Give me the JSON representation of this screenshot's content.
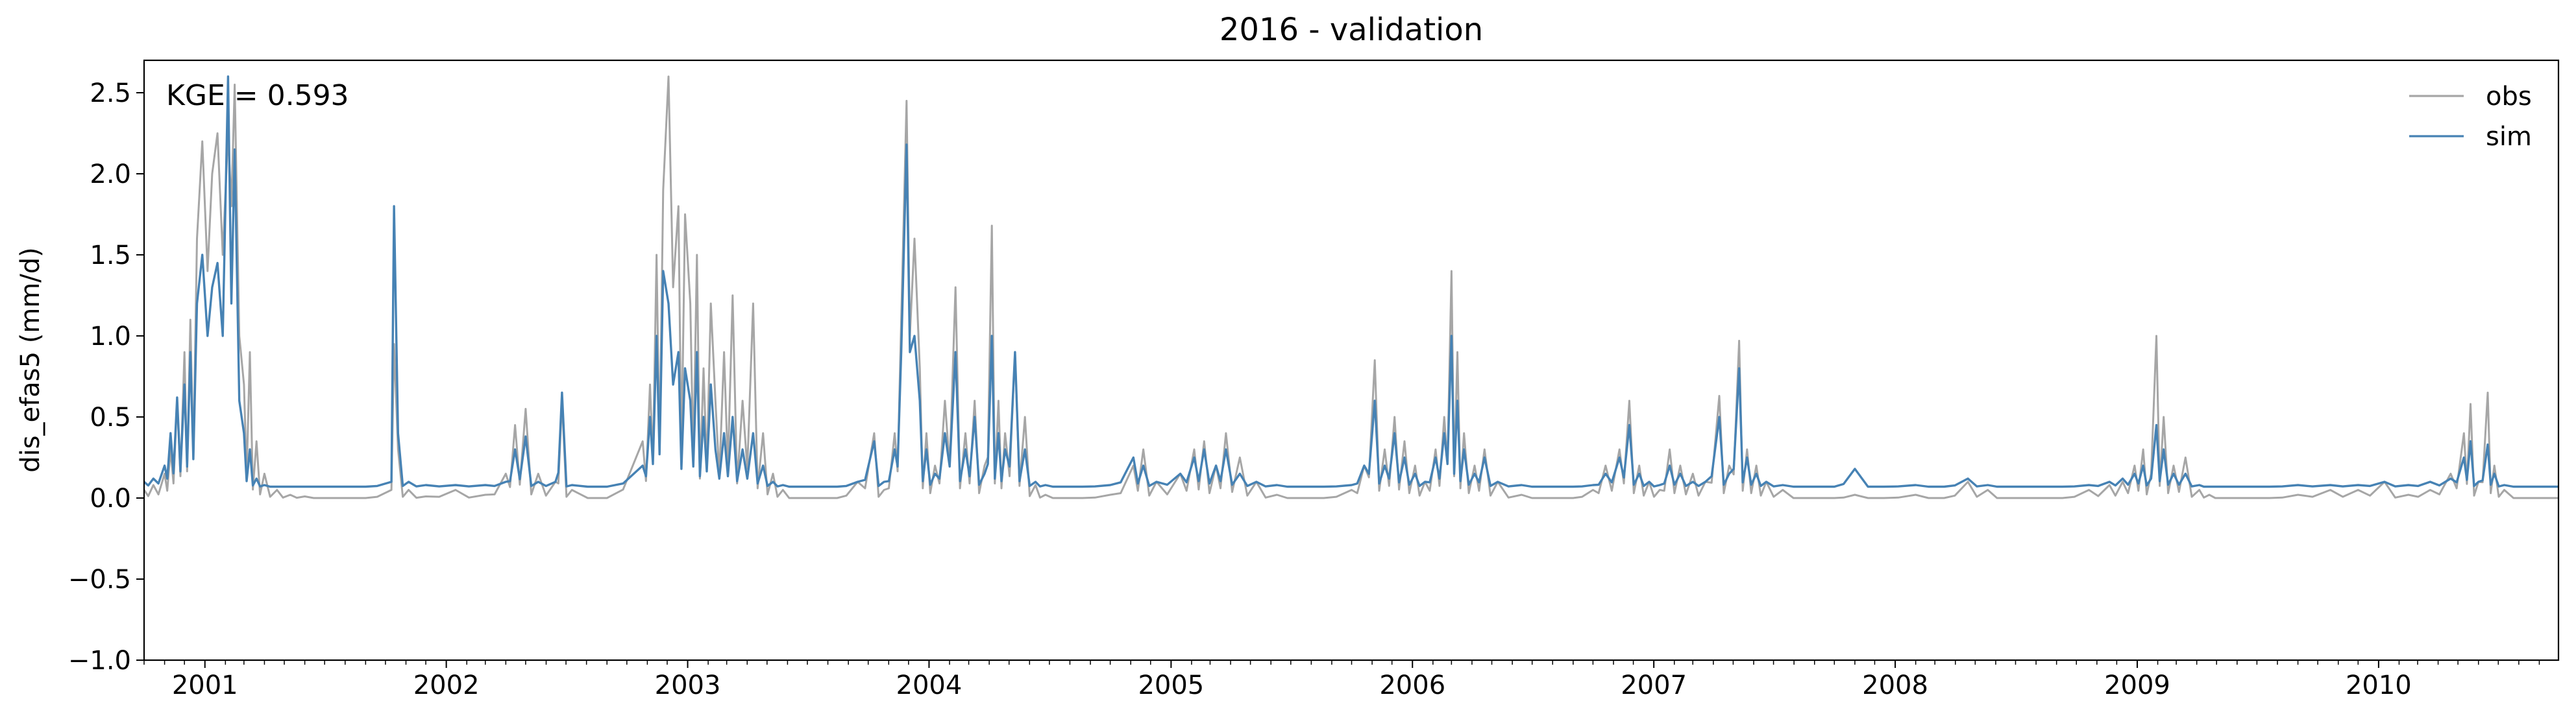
{
  "chart_data": {
    "type": "line",
    "title": "2016 - validation",
    "xlabel": "",
    "ylabel": "dis_efas5 (mm/d)",
    "annotation": "KGE = 0.593",
    "ylim": [
      -1.0,
      2.7
    ],
    "xlim": [
      "2000-10-01",
      "2010-09-30"
    ],
    "yticks": [
      "−1.0",
      "−0.5",
      "0.0",
      "0.5",
      "1.0",
      "1.5",
      "2.0",
      "2.5"
    ],
    "ytick_values": [
      -1.0,
      -0.5,
      0.0,
      0.5,
      1.0,
      1.5,
      2.0,
      2.5
    ],
    "xticks": [
      "2001",
      "2002",
      "2003",
      "2004",
      "2005",
      "2006",
      "2007",
      "2008",
      "2009",
      "2010"
    ],
    "legend_position": "top-right",
    "grid": false,
    "series": [
      {
        "name": "obs",
        "color": "#a6a6a6",
        "baseline": 0.0,
        "x": [
          "2000-10-01",
          "2000-10-15",
          "2000-11-01",
          "2000-11-10",
          "2000-11-20",
          "2000-12-01",
          "2000-12-10",
          "2000-12-20",
          "2000-12-28",
          "2001-01-05",
          "2001-01-12",
          "2001-01-20",
          "2001-01-28",
          "2001-02-05",
          "2001-02-10",
          "2001-02-15",
          "2001-02-22",
          "2001-03-01",
          "2001-03-10",
          "2001-03-20",
          "2001-04-01",
          "2001-04-20",
          "2001-05-10",
          "2001-06-01",
          "2001-07-01",
          "2001-09-01",
          "2001-10-10",
          "2001-10-14",
          "2001-10-20",
          "2001-11-05",
          "2001-12-01",
          "2002-01-15",
          "2002-03-01",
          "2002-04-01",
          "2002-04-15",
          "2002-05-01",
          "2002-05-20",
          "2002-06-15",
          "2002-06-25",
          "2002-07-10",
          "2002-09-01",
          "2002-10-25",
          "2002-11-05",
          "2002-11-15",
          "2002-11-25",
          "2002-12-03",
          "2002-12-10",
          "2002-12-18",
          "2002-12-28",
          "2003-01-05",
          "2003-01-15",
          "2003-01-25",
          "2003-02-05",
          "2003-02-12",
          "2003-02-25",
          "2003-03-10",
          "2003-03-25",
          "2003-04-10",
          "2003-04-25",
          "2003-05-10",
          "2003-05-25",
          "2003-06-15",
          "2003-07-15",
          "2003-08-15",
          "2003-09-15",
          "2003-10-10",
          "2003-10-25",
          "2003-11-10",
          "2003-11-20",
          "2003-11-28",
          "2003-12-03",
          "2003-12-10",
          "2003-12-18",
          "2003-12-28",
          "2004-01-10",
          "2004-01-25",
          "2004-02-10",
          "2004-02-25",
          "2004-03-10",
          "2004-03-25",
          "2004-04-05",
          "2004-04-15",
          "2004-04-25",
          "2004-05-10",
          "2004-05-25",
          "2004-06-10",
          "2004-06-25",
          "2004-07-20",
          "2004-08-20",
          "2004-10-01",
          "2004-11-05",
          "2004-11-20",
          "2004-12-10",
          "2005-01-15",
          "2005-02-05",
          "2005-02-20",
          "2005-03-10",
          "2005-03-25",
          "2005-04-15",
          "2005-05-10",
          "2005-06-10",
          "2005-07-15",
          "2005-08-20",
          "2005-10-01",
          "2005-10-20",
          "2005-11-05",
          "2005-11-20",
          "2005-12-05",
          "2005-12-20",
          "2006-01-05",
          "2006-01-20",
          "2006-02-05",
          "2006-02-18",
          "2006-03-01",
          "2006-03-10",
          "2006-03-20",
          "2006-04-05",
          "2006-04-20",
          "2006-05-10",
          "2006-06-15",
          "2006-07-20",
          "2006-09-01",
          "2006-10-01",
          "2006-10-20",
          "2006-11-10",
          "2006-11-25",
          "2006-12-10",
          "2006-12-25",
          "2007-01-10",
          "2007-01-25",
          "2007-02-10",
          "2007-03-01",
          "2007-03-20",
          "2007-04-10",
          "2007-04-25",
          "2007-05-10",
          "2007-05-22",
          "2007-06-05",
          "2007-06-20",
          "2007-07-15",
          "2007-08-20",
          "2007-10-01",
          "2007-11-01",
          "2007-12-15",
          "2008-02-01",
          "2008-03-15",
          "2008-04-20",
          "2008-05-20",
          "2008-06-20",
          "2008-08-01",
          "2008-09-10",
          "2008-10-20",
          "2008-11-20",
          "2008-12-10",
          "2008-12-28",
          "2009-01-10",
          "2009-01-22",
          "2009-01-30",
          "2009-02-10",
          "2009-02-25",
          "2009-03-15",
          "2009-04-05",
          "2009-04-20",
          "2009-05-10",
          "2009-06-10",
          "2009-07-20",
          "2009-09-01",
          "2009-10-20",
          "2009-12-01",
          "2010-01-10",
          "2010-02-15",
          "2010-03-20",
          "2010-04-20",
          "2010-05-10",
          "2010-05-20",
          "2010-06-01",
          "2010-06-15",
          "2010-06-25",
          "2010-07-10",
          "2010-08-10",
          "2010-09-10",
          "2010-09-30"
        ],
        "values": [
          0.05,
          0.08,
          0.15,
          0.3,
          0.6,
          0.9,
          1.1,
          1.6,
          2.2,
          1.4,
          2.0,
          2.25,
          1.5,
          2.25,
          1.8,
          2.55,
          1.0,
          0.7,
          0.9,
          0.35,
          0.15,
          0.05,
          0.02,
          0.01,
          0.0,
          0.0,
          0.05,
          0.95,
          0.3,
          0.05,
          0.01,
          0.05,
          0.02,
          0.15,
          0.45,
          0.55,
          0.15,
          0.1,
          0.6,
          0.05,
          0.0,
          0.35,
          0.7,
          1.5,
          1.9,
          2.6,
          1.3,
          1.8,
          1.75,
          1.2,
          1.5,
          0.8,
          1.2,
          0.6,
          0.9,
          1.25,
          0.6,
          1.2,
          0.4,
          0.15,
          0.05,
          0.0,
          0.0,
          0.0,
          0.1,
          0.4,
          0.05,
          0.4,
          1.1,
          2.45,
          1.0,
          1.6,
          0.8,
          0.4,
          0.2,
          0.6,
          1.3,
          0.4,
          0.6,
          0.2,
          1.68,
          0.6,
          0.4,
          0.9,
          0.5,
          0.08,
          0.02,
          0.0,
          0.0,
          0.02,
          0.2,
          0.3,
          0.1,
          0.15,
          0.3,
          0.35,
          0.2,
          0.4,
          0.25,
          0.1,
          0.02,
          0.0,
          0.0,
          0.05,
          0.2,
          0.85,
          0.3,
          0.5,
          0.35,
          0.2,
          0.1,
          0.3,
          0.5,
          1.4,
          0.9,
          0.4,
          0.2,
          0.3,
          0.1,
          0.02,
          0.0,
          0.0,
          0.05,
          0.2,
          0.3,
          0.6,
          0.2,
          0.1,
          0.05,
          0.3,
          0.2,
          0.15,
          0.1,
          0.63,
          0.2,
          0.97,
          0.3,
          0.2,
          0.1,
          0.05,
          0.0,
          0.0,
          0.02,
          0.0,
          0.02,
          0.0,
          0.1,
          0.05,
          0.0,
          0.0,
          0.0,
          0.05,
          0.08,
          0.1,
          0.2,
          0.3,
          0.15,
          1.0,
          0.5,
          0.2,
          0.25,
          0.05,
          0.02,
          0.0,
          0.0,
          0.0,
          0.02,
          0.05,
          0.05,
          0.1,
          0.02,
          0.05,
          0.15,
          0.4,
          0.58,
          0.1,
          0.65,
          0.2,
          0.05,
          0.0,
          0.0,
          0.0
        ]
      },
      {
        "name": "sim",
        "color": "#4682b4",
        "baseline": 0.07,
        "x": [
          "2000-10-01",
          "2000-10-15",
          "2000-11-01",
          "2000-11-10",
          "2000-11-20",
          "2000-12-01",
          "2000-12-10",
          "2000-12-20",
          "2000-12-28",
          "2001-01-05",
          "2001-01-12",
          "2001-01-20",
          "2001-01-28",
          "2001-02-05",
          "2001-02-10",
          "2001-02-15",
          "2001-02-22",
          "2001-03-01",
          "2001-03-10",
          "2001-03-20",
          "2001-04-01",
          "2001-04-20",
          "2001-05-10",
          "2001-06-01",
          "2001-07-01",
          "2001-09-01",
          "2001-10-10",
          "2001-10-14",
          "2001-10-20",
          "2001-11-05",
          "2001-12-01",
          "2002-01-15",
          "2002-03-01",
          "2002-04-01",
          "2002-04-15",
          "2002-05-01",
          "2002-05-20",
          "2002-06-15",
          "2002-06-25",
          "2002-07-10",
          "2002-09-01",
          "2002-10-25",
          "2002-11-05",
          "2002-11-15",
          "2002-11-25",
          "2002-12-03",
          "2002-12-10",
          "2002-12-18",
          "2002-12-28",
          "2003-01-05",
          "2003-01-15",
          "2003-01-25",
          "2003-02-05",
          "2003-02-12",
          "2003-02-25",
          "2003-03-10",
          "2003-03-25",
          "2003-04-10",
          "2003-04-25",
          "2003-05-10",
          "2003-05-25",
          "2003-06-15",
          "2003-07-15",
          "2003-08-15",
          "2003-09-15",
          "2003-10-10",
          "2003-10-25",
          "2003-11-10",
          "2003-11-20",
          "2003-11-28",
          "2003-12-03",
          "2003-12-10",
          "2003-12-18",
          "2003-12-28",
          "2004-01-10",
          "2004-01-25",
          "2004-02-10",
          "2004-02-25",
          "2004-03-10",
          "2004-03-25",
          "2004-04-05",
          "2004-04-15",
          "2004-04-25",
          "2004-05-10",
          "2004-05-25",
          "2004-06-10",
          "2004-06-25",
          "2004-07-20",
          "2004-08-20",
          "2004-10-01",
          "2004-11-05",
          "2004-11-20",
          "2004-12-10",
          "2005-01-15",
          "2005-02-05",
          "2005-02-20",
          "2005-03-10",
          "2005-03-25",
          "2005-04-15",
          "2005-05-10",
          "2005-06-10",
          "2005-07-15",
          "2005-08-20",
          "2005-10-01",
          "2005-10-20",
          "2005-11-05",
          "2005-11-20",
          "2005-12-05",
          "2005-12-20",
          "2006-01-05",
          "2006-01-20",
          "2006-02-05",
          "2006-02-18",
          "2006-03-01",
          "2006-03-10",
          "2006-03-20",
          "2006-04-05",
          "2006-04-20",
          "2006-05-10",
          "2006-06-15",
          "2006-07-20",
          "2006-09-01",
          "2006-10-01",
          "2006-10-20",
          "2006-11-10",
          "2006-11-25",
          "2006-12-10",
          "2006-12-25",
          "2007-01-10",
          "2007-01-25",
          "2007-02-10",
          "2007-03-01",
          "2007-03-20",
          "2007-04-10",
          "2007-04-25",
          "2007-05-10",
          "2007-05-22",
          "2007-06-05",
          "2007-06-20",
          "2007-07-15",
          "2007-08-20",
          "2007-10-01",
          "2007-11-01",
          "2007-12-15",
          "2008-02-01",
          "2008-03-15",
          "2008-04-20",
          "2008-05-20",
          "2008-06-20",
          "2008-08-01",
          "2008-09-10",
          "2008-10-20",
          "2008-11-20",
          "2008-12-10",
          "2008-12-28",
          "2009-01-10",
          "2009-01-22",
          "2009-01-30",
          "2009-02-10",
          "2009-02-25",
          "2009-03-15",
          "2009-04-05",
          "2009-04-20",
          "2009-05-10",
          "2009-06-10",
          "2009-07-20",
          "2009-09-01",
          "2009-10-20",
          "2009-12-01",
          "2010-01-10",
          "2010-02-15",
          "2010-03-20",
          "2010-04-20",
          "2010-05-10",
          "2010-05-20",
          "2010-06-01",
          "2010-06-15",
          "2010-06-25",
          "2010-07-10",
          "2010-08-10",
          "2010-09-10",
          "2010-09-30"
        ],
        "values": [
          0.1,
          0.12,
          0.2,
          0.4,
          0.62,
          0.7,
          0.9,
          1.2,
          1.5,
          1.0,
          1.3,
          1.45,
          1.0,
          2.6,
          1.2,
          2.15,
          0.6,
          0.4,
          0.3,
          0.12,
          0.08,
          0.07,
          0.07,
          0.07,
          0.07,
          0.07,
          0.1,
          1.8,
          0.4,
          0.1,
          0.08,
          0.08,
          0.08,
          0.1,
          0.3,
          0.38,
          0.1,
          0.1,
          0.65,
          0.08,
          0.07,
          0.2,
          0.5,
          1.0,
          1.4,
          1.2,
          0.7,
          0.9,
          0.8,
          0.6,
          0.9,
          0.5,
          0.7,
          0.3,
          0.4,
          0.5,
          0.3,
          0.4,
          0.2,
          0.1,
          0.08,
          0.07,
          0.07,
          0.07,
          0.1,
          0.35,
          0.1,
          0.3,
          0.9,
          2.18,
          0.9,
          1.0,
          0.6,
          0.3,
          0.15,
          0.4,
          0.9,
          0.3,
          0.5,
          0.15,
          1.0,
          0.4,
          0.3,
          0.9,
          0.3,
          0.1,
          0.08,
          0.07,
          0.07,
          0.08,
          0.25,
          0.2,
          0.1,
          0.15,
          0.25,
          0.3,
          0.2,
          0.3,
          0.15,
          0.1,
          0.08,
          0.07,
          0.07,
          0.08,
          0.2,
          0.6,
          0.2,
          0.4,
          0.25,
          0.15,
          0.1,
          0.25,
          0.4,
          1.0,
          0.6,
          0.3,
          0.15,
          0.25,
          0.1,
          0.08,
          0.07,
          0.07,
          0.08,
          0.15,
          0.25,
          0.45,
          0.15,
          0.1,
          0.08,
          0.2,
          0.15,
          0.1,
          0.1,
          0.5,
          0.15,
          0.8,
          0.25,
          0.15,
          0.1,
          0.08,
          0.07,
          0.07,
          0.18,
          0.07,
          0.08,
          0.07,
          0.12,
          0.08,
          0.07,
          0.07,
          0.07,
          0.08,
          0.1,
          0.12,
          0.15,
          0.2,
          0.12,
          0.45,
          0.3,
          0.15,
          0.15,
          0.08,
          0.07,
          0.07,
          0.07,
          0.07,
          0.08,
          0.08,
          0.08,
          0.1,
          0.08,
          0.1,
          0.12,
          0.25,
          0.35,
          0.1,
          0.33,
          0.15,
          0.08,
          0.07,
          0.07,
          0.07
        ]
      }
    ]
  }
}
